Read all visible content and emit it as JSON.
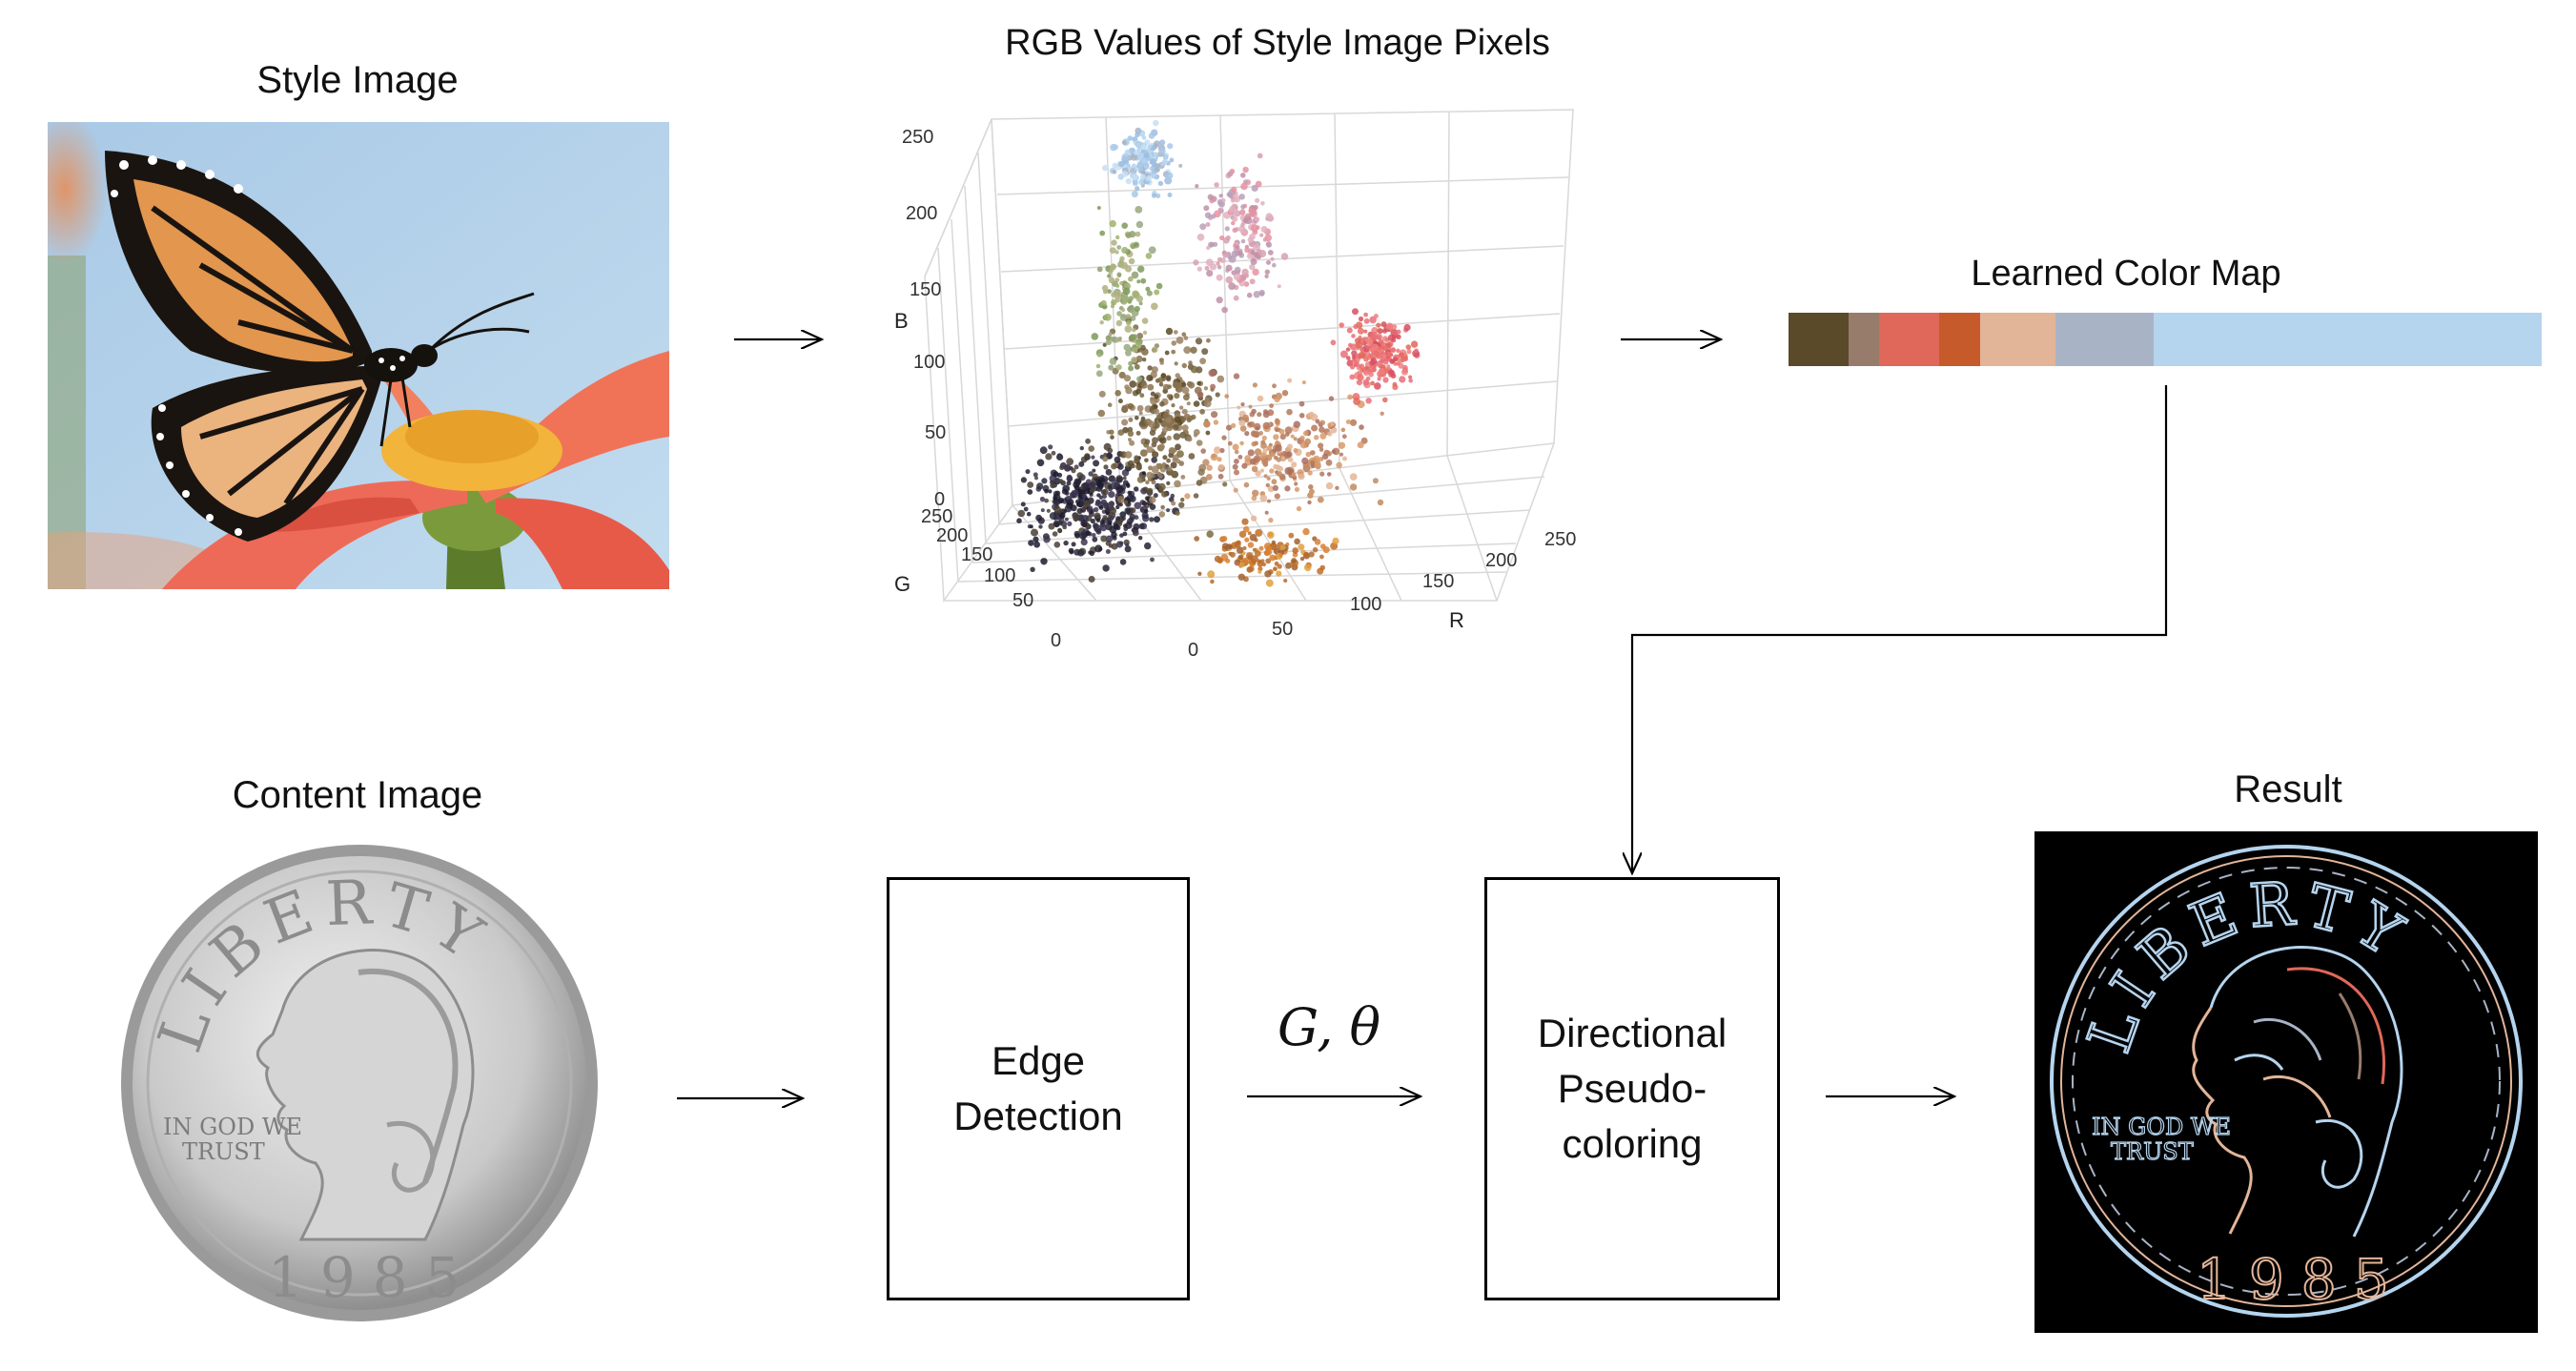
{
  "panels": {
    "style_title": "Style Image",
    "scatter_title": "RGB Values of Style Image Pixels",
    "colormap_title": "Learned Color Map",
    "content_title": "Content Image",
    "result_title": "Result"
  },
  "boxes": {
    "edge_detection": "Edge\nDetection",
    "pseudo_coloring": "Directional\nPseudo-\ncoloring"
  },
  "arrow_label": "G, θ",
  "coin": {
    "top_text": "LIBERTY",
    "motto": "IN GOD WE\nTRUST",
    "year": "1985"
  },
  "scatter_axes": {
    "b_label": "B",
    "g_label": "G",
    "r_label": "R",
    "b_ticks": [
      "250",
      "200",
      "150",
      "100",
      "50",
      "0"
    ],
    "g_ticks": [
      "250",
      "200",
      "150",
      "100",
      "50",
      "0"
    ],
    "r_ticks": [
      "0",
      "50",
      "100",
      "150",
      "200",
      "250"
    ]
  },
  "color_map": [
    "#5a4a2a",
    "#977c6c",
    "#e0685a",
    "#c65a2a",
    "#e3b598",
    "#a8b4c6",
    "#b5d4ee"
  ],
  "color_map_weights": [
    0.08,
    0.04,
    0.08,
    0.055,
    0.1,
    0.13,
    0.515
  ]
}
